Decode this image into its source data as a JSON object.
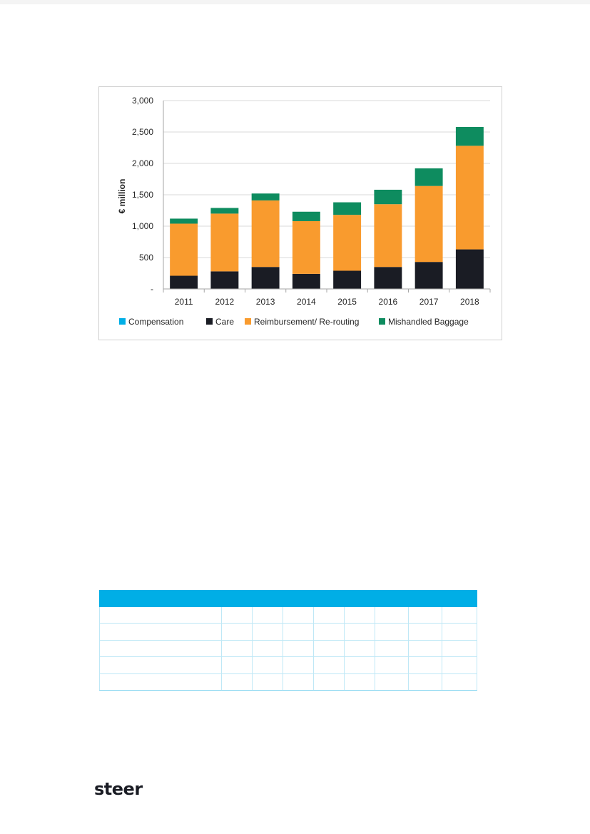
{
  "chart_data": {
    "type": "bar",
    "stacked": true,
    "ylabel": "€ million",
    "ylim": [
      0,
      3000
    ],
    "yticks": [
      0,
      500,
      1000,
      1500,
      2000,
      2500,
      3000
    ],
    "ytick_labels": [
      "-",
      "500",
      "1,000",
      "1,500",
      "2,000",
      "2,500",
      "3,000"
    ],
    "categories": [
      "2011",
      "2012",
      "2013",
      "2014",
      "2015",
      "2016",
      "2017",
      "2018"
    ],
    "series": [
      {
        "name": "Compensation",
        "color": "#00aee6",
        "values": [
          0,
          0,
          0,
          0,
          0,
          0,
          0,
          0
        ]
      },
      {
        "name": "Care",
        "color": "#1a1c24",
        "values": [
          210,
          280,
          350,
          240,
          290,
          350,
          430,
          630
        ]
      },
      {
        "name": "Reimbursement/ Re-routing",
        "color": "#f99b2e",
        "values": [
          830,
          920,
          1060,
          840,
          890,
          1000,
          1210,
          1650
        ]
      },
      {
        "name": "Mishandled Baggage",
        "color": "#0e8c5f",
        "values": [
          80,
          90,
          110,
          150,
          200,
          230,
          280,
          300
        ]
      }
    ],
    "grid": true,
    "legend_position": "bottom"
  },
  "logo": {
    "text": "steer"
  }
}
